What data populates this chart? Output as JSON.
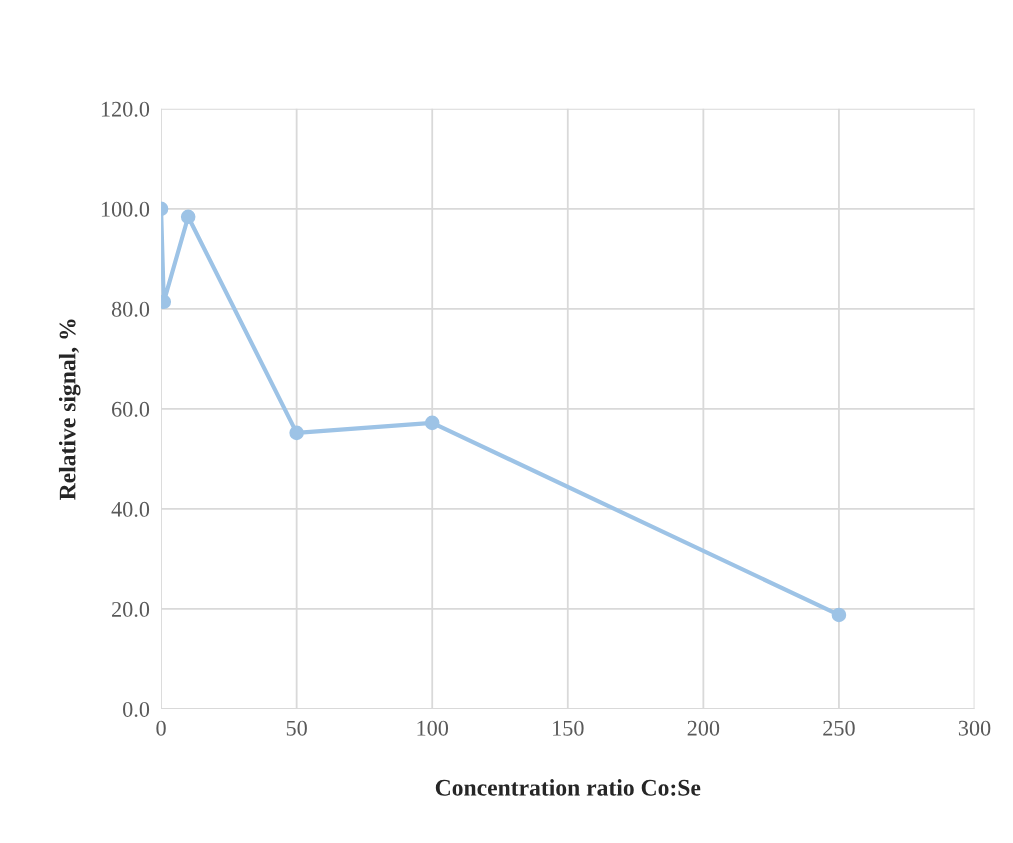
{
  "chart_data": {
    "type": "line",
    "xlabel": "Concentration ratio Co:Se",
    "ylabel": "Relative signal, %",
    "x": [
      0,
      1,
      10,
      50,
      100,
      250
    ],
    "series": [
      {
        "color": "#9dc3e6",
        "values": [
          100.0,
          81.4,
          98.4,
          55.2,
          57.2,
          18.8
        ]
      }
    ],
    "xlim": [
      0,
      300
    ],
    "xticks": [
      0,
      50,
      100,
      150,
      200,
      250,
      300
    ],
    "ylim": [
      0,
      120
    ],
    "yticks": [
      {
        "value": 0,
        "label": "0.0"
      },
      {
        "value": 20,
        "label": "20.0"
      },
      {
        "value": 40,
        "label": "40.0"
      },
      {
        "value": 60,
        "label": "60.0"
      },
      {
        "value": 80,
        "label": "80.0"
      },
      {
        "value": 100,
        "label": "100.0"
      },
      {
        "value": 120,
        "label": "120.0"
      }
    ],
    "grid": true,
    "marker": "circle",
    "line_style": "solid",
    "legend": false
  }
}
